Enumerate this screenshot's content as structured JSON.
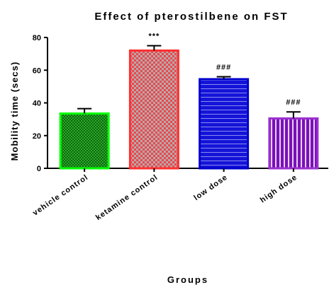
{
  "chart_data": {
    "type": "bar",
    "title": "Effect of pterostilbene on FST",
    "xlabel": "Groups",
    "ylabel": "Mobility time (secs)",
    "ylim": [
      0,
      80
    ],
    "yticks": [
      "0",
      "20",
      "40",
      "60",
      "80"
    ],
    "categories": [
      "vehicle control",
      "ketamine control",
      "low dose",
      "high dose"
    ],
    "values": [
      33.5,
      72,
      54.5,
      30.5
    ],
    "errors": [
      3,
      3,
      1.5,
      4
    ],
    "annotations": [
      "",
      "***",
      "###",
      "###"
    ],
    "grid": false,
    "colors": {
      "vehicle control": {
        "fill": "#1a8f1a",
        "border": "#00ff00",
        "pattern": "dense-checker"
      },
      "ketamine control": {
        "fill": "#e84a50",
        "border": "#ff3030",
        "pattern": "checker"
      },
      "low dose": {
        "fill": "#1414d8",
        "border": "#0000cc",
        "pattern": "horizontal-lines"
      },
      "high dose": {
        "fill": "#8a1ec8",
        "border": "#9b30d0",
        "pattern": "vertical-lines"
      }
    }
  }
}
